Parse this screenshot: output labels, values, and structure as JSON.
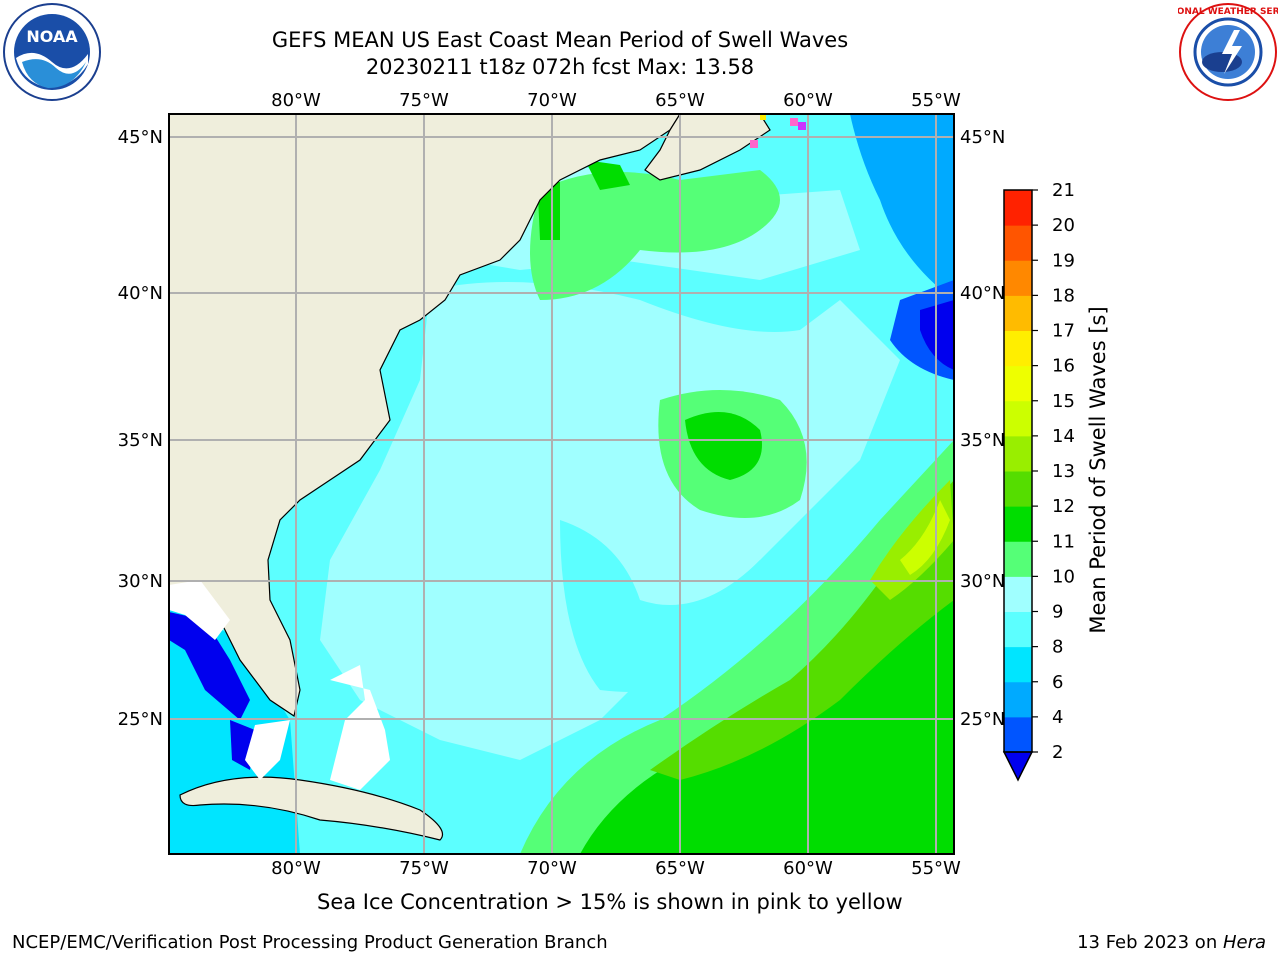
{
  "title": {
    "line1": "GEFS MEAN US East Coast Mean Period of Swell Waves",
    "line2": "20230211 t18z 072h fcst   Max: 13.58"
  },
  "map": {
    "lon_labels": [
      "80°W",
      "75°W",
      "70°W",
      "65°W",
      "60°W",
      "55°W"
    ],
    "lat_labels": [
      "45°N",
      "40°N",
      "35°N",
      "30°N",
      "25°N"
    ],
    "lon_range": [
      -85,
      -54
    ],
    "lat_range": [
      20.5,
      46
    ]
  },
  "colorbar": {
    "label": "Mean Period of Swell Waves [s]",
    "ticks": [
      "2",
      "4",
      "6",
      "8",
      "9",
      "10",
      "11",
      "12",
      "13",
      "14",
      "15",
      "16",
      "17",
      "18",
      "19",
      "20",
      "21"
    ],
    "colors": [
      "#0055ff",
      "#00aaff",
      "#00e5ff",
      "#5cffff",
      "#a0ffff",
      "#55ff77",
      "#00dd00",
      "#55dd00",
      "#99ee00",
      "#ccff00",
      "#eeff00",
      "#ffee00",
      "#ffbb00",
      "#ff8800",
      "#ff5500",
      "#ff2200"
    ],
    "under_color": "#0000ee"
  },
  "caption": "Sea Ice Concentration > 15% is shown in pink to yellow",
  "footer": {
    "left": "NCEP/EMC/Verification Post Processing Product Generation Branch",
    "right_date": "13 Feb 2023 on ",
    "right_host": "Hera"
  },
  "logos": {
    "noaa_text": "NOAA",
    "nws_text": "NATIONAL WEATHER SERVICE"
  }
}
